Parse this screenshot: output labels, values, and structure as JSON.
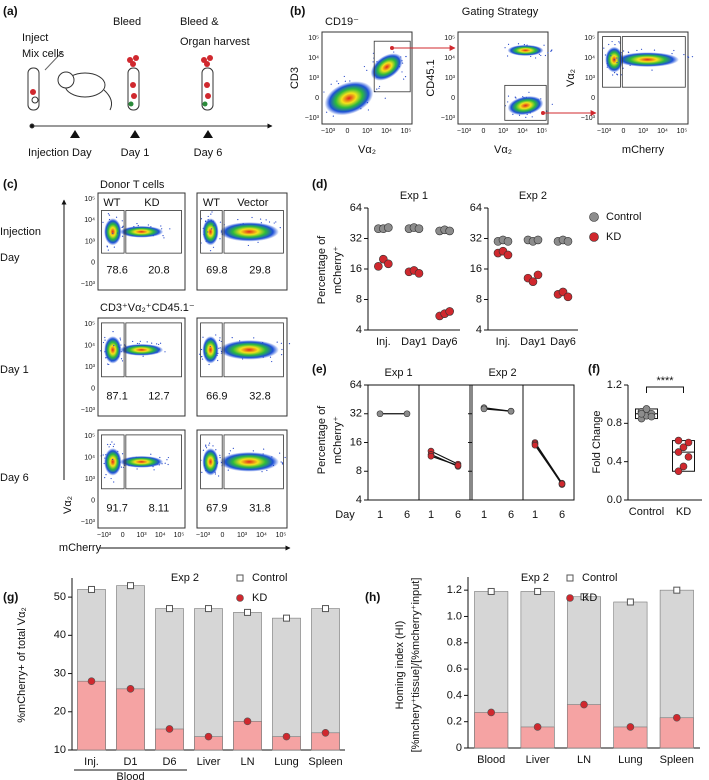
{
  "panel_labels": [
    "(a)",
    "(b)",
    "(c)",
    "(d)",
    "(e)",
    "(f)",
    "(g)",
    "(h)"
  ],
  "schematic": {
    "steps": [
      "Inject",
      "Mix cells",
      "Bleed",
      "Bleed &",
      "Organ harvest"
    ],
    "timeline": [
      "Injection Day",
      "Day 1",
      "Day 6"
    ]
  },
  "gating": {
    "title": "Gating Strategy",
    "gate_label": "CD19⁻",
    "plots": [
      {
        "y": "CD3",
        "x": "Vα₂"
      },
      {
        "y": "CD45.1",
        "x": "Vα₂"
      },
      {
        "y": "Vα₂",
        "x": "mCherry"
      }
    ]
  },
  "flow_ticks": {
    "y": [
      "10⁵",
      "10⁴",
      "10³",
      "0",
      "−10³"
    ],
    "x": [
      "−10³",
      "0",
      "10³",
      "10⁴",
      "10⁵"
    ]
  },
  "flow": {
    "header": "Donor T cells",
    "row_labels": [
      [
        "Injection",
        "Day"
      ],
      [
        "Day 1"
      ],
      [
        "Day 6"
      ]
    ],
    "gate_names": [
      [
        "WT",
        "KD"
      ],
      [
        "WT",
        "Vector"
      ]
    ],
    "subtitle": "CD3⁺Vα₂⁺CD45.1⁻",
    "percentages": [
      [
        [
          78.6,
          20.8
        ],
        [
          69.8,
          29.8
        ]
      ],
      [
        [
          87.1,
          12.7
        ],
        [
          66.9,
          32.8
        ]
      ],
      [
        [
          91.7,
          8.11
        ],
        [
          67.9,
          31.8
        ]
      ]
    ],
    "y_label": "Vα₂",
    "x_label": "mCherry"
  },
  "chart_data": [
    {
      "type": "dot",
      "y_label_lines": [
        "Percentage of",
        "mCherry⁺"
      ],
      "log": true,
      "ylim": [
        4,
        64
      ],
      "yticks": [
        4,
        8,
        16,
        32,
        64
      ],
      "categories": [
        "Inj.",
        "Day1",
        "Day6"
      ],
      "series": [
        {
          "name": "Control",
          "color": "#8c8c8c"
        },
        {
          "name": "KD",
          "color": "#d0282e"
        }
      ],
      "panels": [
        {
          "title": "Exp 1",
          "values": [
            [
              [
                40,
                40,
                41
              ],
              [
                40,
                41,
                40
              ],
              [
                38,
                39,
                38
              ]
            ],
            [
              [
                17,
                20,
                18
              ],
              [
                15,
                15.5,
                14.5
              ],
              [
                5.5,
                5.8,
                6.1
              ]
            ]
          ]
        },
        {
          "title": "Exp 2",
          "values": [
            [
              [
                30,
                31,
                30
              ],
              [
                31,
                30,
                31
              ],
              [
                30,
                31,
                30
              ]
            ],
            [
              [
                23,
                24,
                22
              ],
              [
                13,
                12,
                14
              ],
              [
                9,
                9.5,
                8.5
              ]
            ]
          ]
        }
      ]
    },
    {
      "type": "paired",
      "y_label_lines": [
        "Percentage of",
        "mCherry⁺"
      ],
      "log": true,
      "ylim": [
        4,
        64
      ],
      "yticks": [
        4,
        8,
        16,
        32,
        64
      ],
      "x_label": "Day",
      "xticks": [
        1,
        6
      ],
      "colors": [
        "#8c8c8c",
        "#d0282e"
      ],
      "panels": [
        {
          "title": "Exp 1",
          "groups": [
            [
              [
                32,
                32
              ]
            ],
            [
              [
                13,
                9.5
              ],
              [
                12,
                9
              ],
              [
                11.5,
                9.2
              ]
            ]
          ]
        },
        {
          "title": "Exp 2",
          "groups": [
            [
              [
                37,
                34
              ],
              [
                36,
                34
              ]
            ],
            [
              [
                16,
                6
              ],
              [
                15.5,
                5.8
              ],
              [
                15,
                5.9
              ]
            ]
          ]
        }
      ]
    },
    {
      "type": "box",
      "y_label": "Fold Change",
      "ylim": [
        0,
        1.2
      ],
      "yticks": [
        {
          "value": 0,
          "label": "0.0"
        },
        0.4,
        0.8,
        1.2
      ],
      "categories": [
        "Control",
        "KD"
      ],
      "colors": [
        "#8c8c8c",
        "#d0282e"
      ],
      "values": [
        [
          0.85,
          0.88,
          0.9,
          0.92,
          0.95,
          0.87,
          0.9
        ],
        [
          0.3,
          0.35,
          0.45,
          0.5,
          0.55,
          0.6,
          0.62
        ]
      ],
      "annotation": "****"
    },
    {
      "type": "overlap",
      "title": "Exp 2",
      "y_label_lines": [
        "%mCherry+ of total Vα₂"
      ],
      "ylim": [
        10,
        55
      ],
      "yticks": [
        10,
        20,
        30,
        40,
        50
      ],
      "categories": [
        "Inj.",
        "D1",
        "D6",
        "Liver",
        "LN",
        "Lung",
        "Spleen"
      ],
      "group_label": "Blood",
      "series": [
        {
          "name": "Control",
          "color": "#d6d6d6",
          "marker": "square",
          "marker_color": "#ffffff",
          "values": [
            52,
            53,
            47,
            47,
            46,
            44.5,
            47
          ]
        },
        {
          "name": "KD",
          "color": "#f5a3a3",
          "marker": "circle",
          "marker_color": "#d0282e",
          "values": [
            28,
            26,
            15.5,
            13.5,
            17.5,
            13.5,
            14.5
          ]
        }
      ]
    },
    {
      "type": "overlap",
      "title": "Exp 2",
      "y_label_lines": [
        "Homing index (HI)",
        "[%mchery⁺tissue]/[%mcherry⁺input]"
      ],
      "ylim": [
        0,
        1.3
      ],
      "yticks": [
        0,
        0.2,
        0.4,
        0.6,
        0.8,
        {
          "value": 1,
          "label": "1.0"
        },
        1.2
      ],
      "categories": [
        "Blood",
        "Liver",
        "LN",
        "Lung",
        "Spleen"
      ],
      "series": [
        {
          "name": "Control",
          "color": "#d6d6d6",
          "marker": "square",
          "marker_color": "#ffffff",
          "values": [
            1.19,
            1.19,
            1.15,
            1.11,
            1.2
          ]
        },
        {
          "name": "KD",
          "color": "#f5a3a3",
          "marker": "circle",
          "marker_color": "#d0282e",
          "values": [
            0.27,
            0.16,
            0.33,
            0.16,
            0.23
          ]
        }
      ]
    }
  ]
}
